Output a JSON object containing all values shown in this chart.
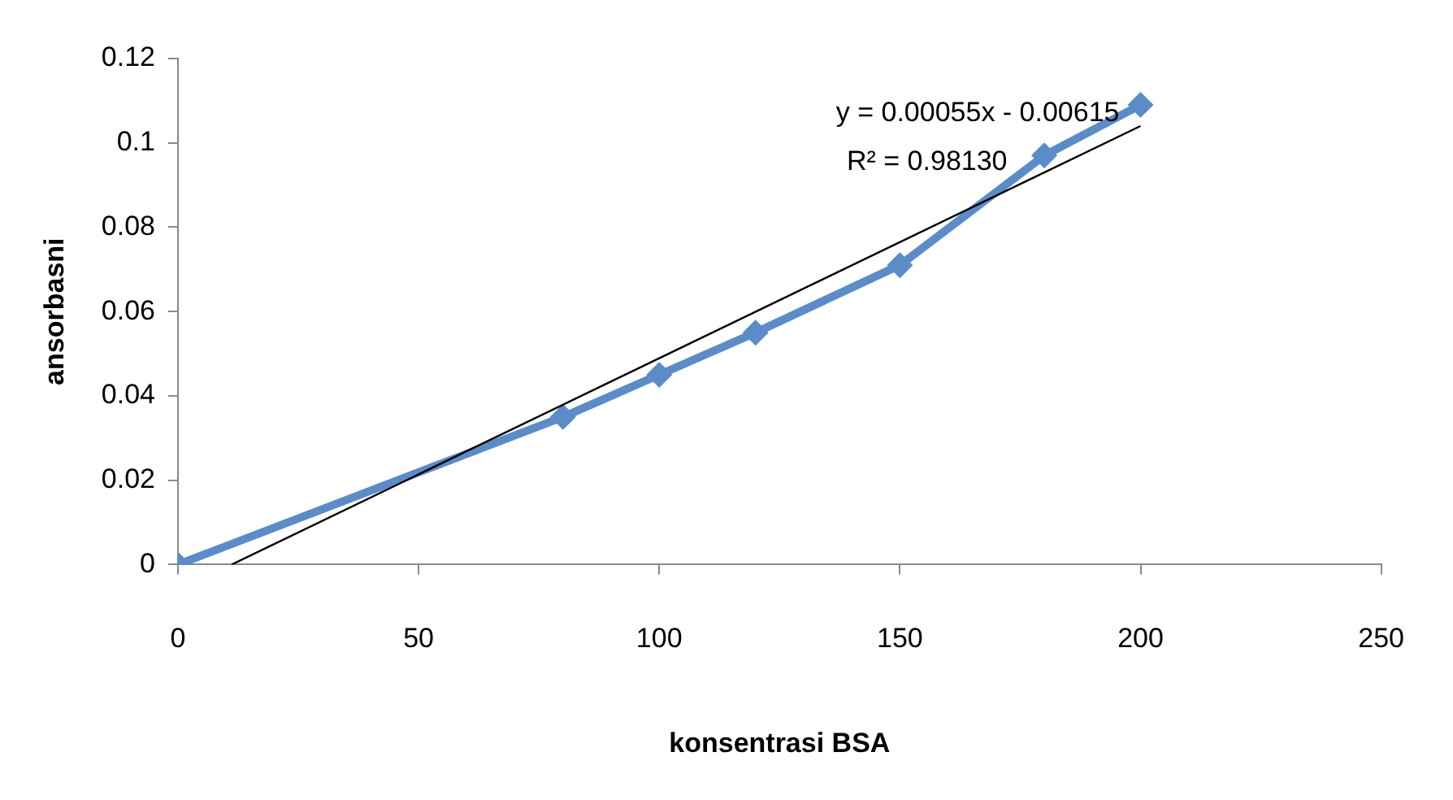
{
  "chart_data": {
    "type": "line",
    "xlabel": "konsentrasi BSA",
    "ylabel": "ansorbasni",
    "x": [
      0,
      80,
      100,
      120,
      150,
      180,
      200
    ],
    "series": [
      {
        "color": "#5b8cc8",
        "values": [
          0,
          0.035,
          0.045,
          0.055,
          0.071,
          0.097,
          0.109
        ],
        "marker": "diamond"
      },
      {
        "color": "#000000",
        "type": "line",
        "x": [
          11.18,
          200
        ],
        "values": [
          0,
          0.104
        ],
        "marker": "none"
      }
    ],
    "xlim": [
      0,
      250
    ],
    "xticks": [
      0,
      50,
      100,
      150,
      200,
      250
    ],
    "ylim": [
      0,
      0.12
    ],
    "yticks": [
      0,
      0.02,
      0.04,
      0.06,
      0.08,
      0.1,
      0.12
    ],
    "grid": false,
    "legend": false,
    "annotations": [
      "y = 0.00055x - 0.00615",
      "R² = 0.98130"
    ]
  }
}
